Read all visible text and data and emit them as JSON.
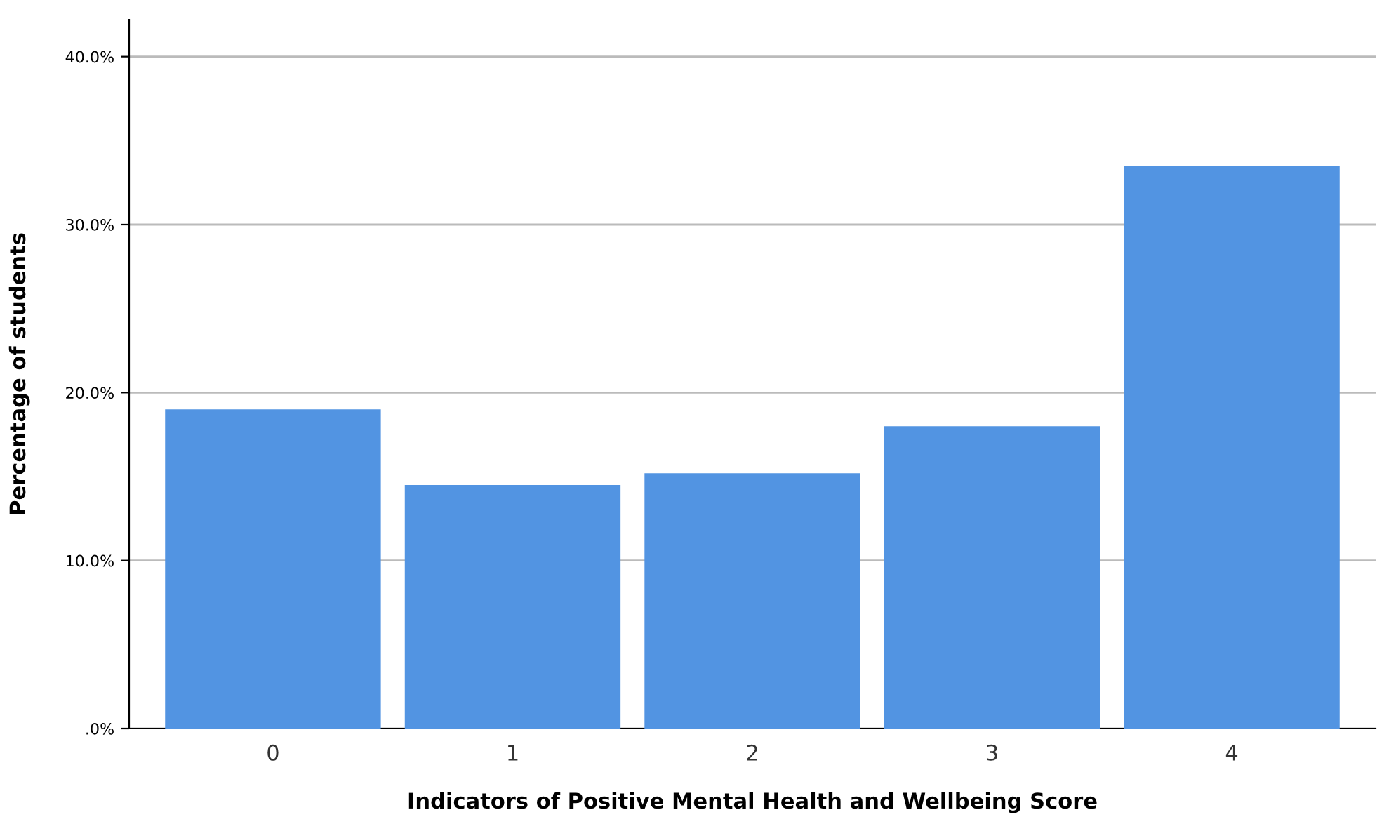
{
  "chart_data": {
    "type": "bar",
    "xlabel": "Indicators of Positive Mental Health and Wellbeing Score",
    "ylabel": "Percentage of students",
    "categories": [
      "0",
      "1",
      "2",
      "3",
      "4"
    ],
    "values": [
      19.0,
      14.5,
      15.2,
      18.0,
      33.5
    ],
    "color": "#5294e2",
    "ylim": [
      0,
      42.2
    ],
    "yticks": [
      {
        "value": 0,
        "label": ".0%"
      },
      {
        "value": 10,
        "label": "10.0%"
      },
      {
        "value": 20,
        "label": "20.0%"
      },
      {
        "value": 30,
        "label": "30.0%"
      },
      {
        "value": 40,
        "label": "40.0%"
      }
    ],
    "grid": "y"
  }
}
